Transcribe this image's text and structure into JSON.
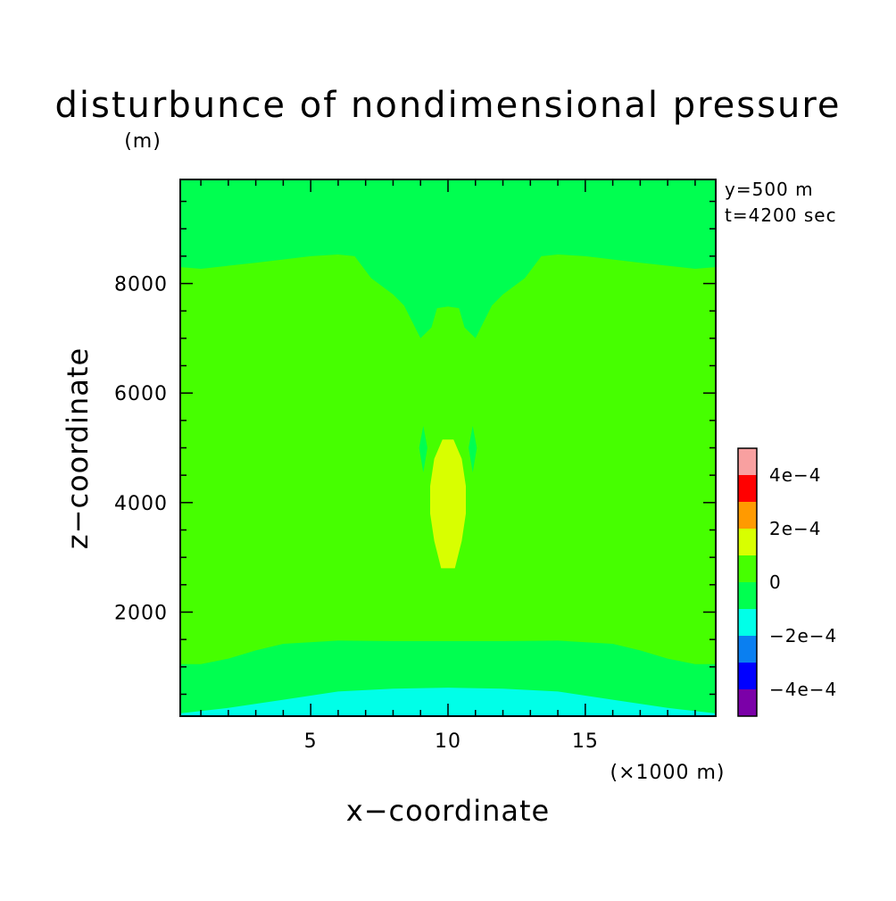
{
  "chart_data": {
    "type": "contour",
    "title": "disturbunce of nondimensional pressure",
    "ylabel_unit": "(m)",
    "xlabel": "x−coordinate",
    "xlabel_unit": "(×1000 m)",
    "ylabel": "z−coordinate",
    "xlim": [
      0.25,
      19.75
    ],
    "ylim": [
      100,
      9900
    ],
    "xticks": [
      5,
      10,
      15
    ],
    "yticks": [
      2000,
      4000,
      6000,
      8000
    ],
    "xtick_labels": [
      "5",
      "10",
      "15"
    ],
    "ytick_labels": [
      "2000",
      "4000",
      "6000",
      "8000"
    ],
    "annotations": [
      "y=500 m",
      "t=4200 sec"
    ],
    "colorbar": {
      "levels": [
        -0.0005,
        -0.0004,
        -0.0003,
        -0.0002,
        -0.0001,
        0,
        0.0001,
        0.0002,
        0.0003,
        0.0004,
        0.0005
      ],
      "colors": [
        "#7b00a8",
        "#0000ff",
        "#0a7ff0",
        "#00ffe8",
        "#00ff50",
        "#46ff00",
        "#d8ff00",
        "#ff9a00",
        "#ff0000",
        "#f8a0a0"
      ],
      "labels": [
        "−4e−4",
        "−2e−4",
        "0",
        "2e−4",
        "4e−4"
      ],
      "label_values": [
        -0.0004,
        -0.0002,
        0,
        0.0002,
        0.0004
      ]
    },
    "regions": [
      {
        "level": "0..1e-4",
        "color": "#46ff00",
        "polygon": [
          [
            0.25,
            100
          ],
          [
            19.75,
            100
          ],
          [
            19.75,
            9900
          ],
          [
            0.25,
            9900
          ]
        ]
      },
      {
        "level": "-1e-4..0",
        "color": "#00ff50",
        "polygon": [
          [
            0.25,
            9900
          ],
          [
            19.75,
            9900
          ],
          [
            19.75,
            8300
          ],
          [
            19,
            8270
          ],
          [
            17,
            8380
          ],
          [
            15,
            8500
          ],
          [
            14,
            8530
          ],
          [
            13.4,
            8500
          ],
          [
            12.8,
            8100
          ],
          [
            12,
            7800
          ],
          [
            11.6,
            7600
          ],
          [
            11,
            7000
          ],
          [
            10.6,
            7200
          ],
          [
            10.4,
            7550
          ],
          [
            10,
            7580
          ],
          [
            9.6,
            7550
          ],
          [
            9.4,
            7200
          ],
          [
            9,
            7000
          ],
          [
            8.4,
            7600
          ],
          [
            8,
            7800
          ],
          [
            7.2,
            8100
          ],
          [
            6.6,
            8500
          ],
          [
            6,
            8530
          ],
          [
            5,
            8500
          ],
          [
            3,
            8380
          ],
          [
            1,
            8270
          ],
          [
            0.25,
            8300
          ]
        ]
      },
      {
        "level": "-1e-4..0",
        "color": "#00ff50",
        "polygon": [
          [
            0.25,
            1050
          ],
          [
            1,
            1050
          ],
          [
            2,
            1150
          ],
          [
            3,
            1300
          ],
          [
            4,
            1420
          ],
          [
            6,
            1480
          ],
          [
            8,
            1470
          ],
          [
            10,
            1470
          ],
          [
            12,
            1470
          ],
          [
            14,
            1480
          ],
          [
            16,
            1420
          ],
          [
            17,
            1300
          ],
          [
            18,
            1150
          ],
          [
            19,
            1050
          ],
          [
            19.75,
            1050
          ],
          [
            19.75,
            100
          ],
          [
            0.25,
            100
          ]
        ]
      },
      {
        "level": "-2e-4..-1e-4",
        "color": "#00ffe8",
        "polygon": [
          [
            0.25,
            150
          ],
          [
            2,
            250
          ],
          [
            4,
            400
          ],
          [
            6,
            550
          ],
          [
            8,
            600
          ],
          [
            10,
            620
          ],
          [
            12,
            600
          ],
          [
            14,
            550
          ],
          [
            16,
            400
          ],
          [
            18,
            250
          ],
          [
            19.75,
            150
          ],
          [
            19.75,
            100
          ],
          [
            0.25,
            100
          ]
        ]
      },
      {
        "level": "1e-4..2e-4",
        "color": "#d8ff00",
        "polygon": [
          [
            9.8,
            5150
          ],
          [
            10.2,
            5150
          ],
          [
            10.5,
            4800
          ],
          [
            10.65,
            4300
          ],
          [
            10.65,
            3800
          ],
          [
            10.5,
            3300
          ],
          [
            10.25,
            2800
          ],
          [
            9.75,
            2800
          ],
          [
            9.5,
            3300
          ],
          [
            9.35,
            3800
          ],
          [
            9.35,
            4300
          ],
          [
            9.5,
            4800
          ]
        ]
      },
      {
        "level": "-1e-4..0",
        "color": "#00ff50",
        "polygon": [
          [
            9.1,
            5400
          ],
          [
            9.25,
            5000
          ],
          [
            9.1,
            4550
          ],
          [
            8.95,
            5000
          ]
        ]
      },
      {
        "level": "-1e-4..0",
        "color": "#00ff50",
        "polygon": [
          [
            10.9,
            5400
          ],
          [
            11.05,
            5000
          ],
          [
            10.9,
            4550
          ],
          [
            10.75,
            5000
          ]
        ]
      }
    ]
  }
}
